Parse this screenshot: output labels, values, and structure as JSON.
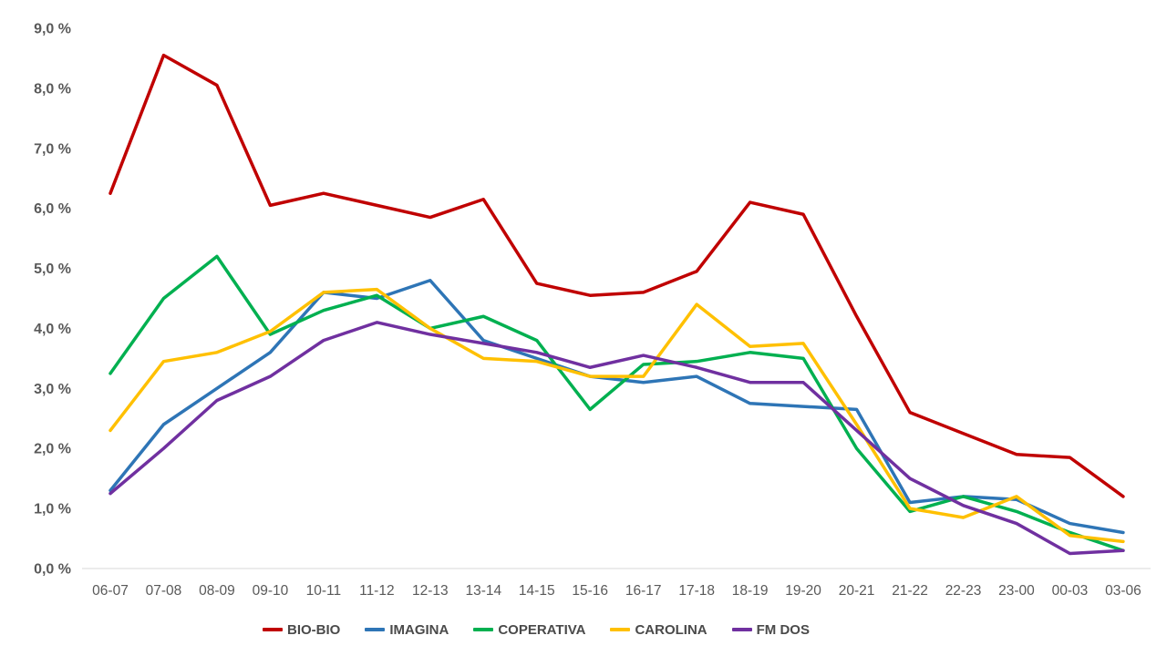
{
  "chart_data": {
    "type": "line",
    "categories": [
      "06-07",
      "07-08",
      "08-09",
      "09-10",
      "10-11",
      "11-12",
      "12-13",
      "13-14",
      "14-15",
      "15-16",
      "16-17",
      "17-18",
      "18-19",
      "19-20",
      "20-21",
      "21-22",
      "22-23",
      "23-00",
      "00-03",
      "03-06"
    ],
    "series": [
      {
        "name": "BIO-BIO",
        "color": "#C00000",
        "values": [
          6.25,
          8.55,
          8.05,
          6.05,
          6.25,
          6.05,
          5.85,
          6.15,
          4.75,
          4.55,
          4.6,
          4.95,
          6.1,
          5.9,
          4.2,
          2.6,
          2.25,
          1.9,
          1.85,
          1.2
        ]
      },
      {
        "name": "IMAGINA",
        "color": "#2E75B6",
        "values": [
          1.3,
          2.4,
          3.0,
          3.6,
          4.6,
          4.5,
          4.8,
          3.8,
          3.5,
          3.2,
          3.1,
          3.2,
          2.75,
          2.7,
          2.65,
          1.1,
          1.2,
          1.15,
          0.75,
          0.6
        ]
      },
      {
        "name": "COPERATIVA",
        "color": "#00B050",
        "values": [
          3.25,
          4.5,
          5.2,
          3.9,
          4.3,
          4.55,
          4.0,
          4.2,
          3.8,
          2.65,
          3.4,
          3.45,
          3.6,
          3.5,
          2.0,
          0.95,
          1.2,
          0.95,
          0.6,
          0.3
        ]
      },
      {
        "name": "CAROLINA",
        "color": "#FFC000",
        "values": [
          2.3,
          3.45,
          3.6,
          3.95,
          4.6,
          4.65,
          4.0,
          3.5,
          3.45,
          3.2,
          3.2,
          4.4,
          3.7,
          3.75,
          2.4,
          1.0,
          0.85,
          1.2,
          0.55,
          0.45
        ]
      },
      {
        "name": "FM DOS",
        "color": "#7030A0",
        "values": [
          1.25,
          2.0,
          2.8,
          3.2,
          3.8,
          4.1,
          3.9,
          3.75,
          3.6,
          3.35,
          3.55,
          3.35,
          3.1,
          3.1,
          2.3,
          1.5,
          1.05,
          0.75,
          0.25,
          0.3
        ]
      }
    ],
    "y_axis": {
      "min": 0,
      "max": 9,
      "step": 1,
      "unit": "%",
      "decimal_separator": ",",
      "tick_labels": [
        "0,0 %",
        "1,0 %",
        "2,0 %",
        "3,0 %",
        "4,0 %",
        "5,0 %",
        "6,0 %",
        "7,0 %",
        "8,0 %",
        "9,0 %"
      ]
    },
    "grid": "off",
    "legend_position": "bottom"
  },
  "styles": {
    "background": "#FFFFFF",
    "axis_text_color": "#595959",
    "legend_text_color": "#4A4A4A",
    "axis_line_color": "#D9D9D9"
  }
}
